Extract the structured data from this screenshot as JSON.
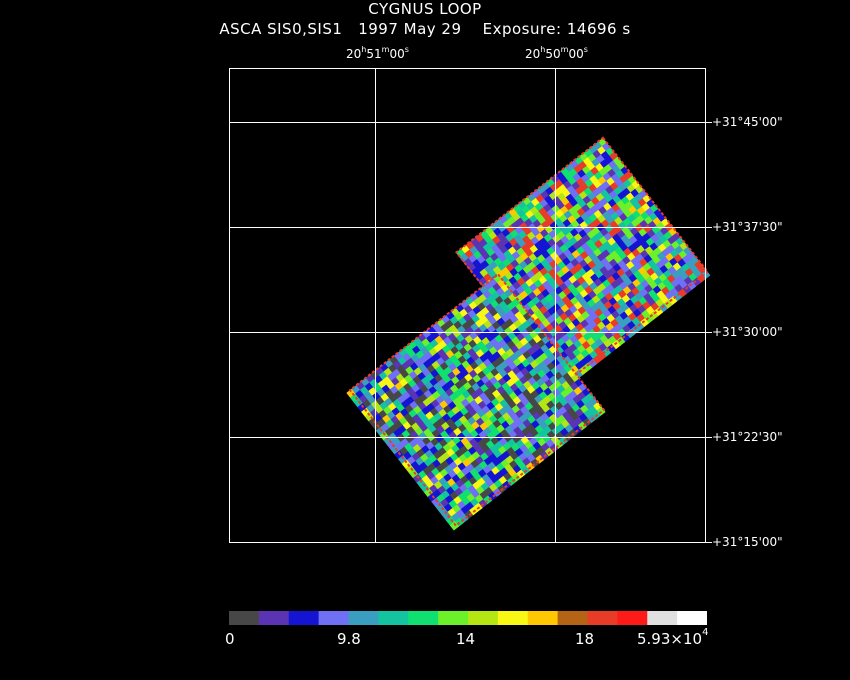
{
  "title": "CYGNUS LOOP",
  "subtitle": {
    "instrument": "ASCA SIS0,SIS1",
    "date": "1997 May 29",
    "exposure": "Exposure: 14696 s"
  },
  "ra_ticks": [
    {
      "h": "20",
      "m": "51",
      "s": "00"
    },
    {
      "h": "20",
      "m": "50",
      "s": "00"
    }
  ],
  "dec_ticks": [
    "+31°45'00\"",
    "+31°37'30\"",
    "+31°30'00\"",
    "+31°22'30\"",
    "+31°15'00\""
  ],
  "colorbar": {
    "labels": [
      "0",
      "9.8",
      "14",
      "18",
      "5.93×10"
    ],
    "exponent": "4",
    "colors": [
      "#474747",
      "#5b34b4",
      "#1414d2",
      "#7070f4",
      "#3a9ec0",
      "#14c4a0",
      "#10e070",
      "#6cf02a",
      "#b4e614",
      "#f8f814",
      "#ffc800",
      "#b46414",
      "#e83c28",
      "#ff1a1a",
      "#e0e0e0",
      "#ffffff"
    ]
  },
  "image_palette": {
    "background": "#000000",
    "levels": [
      "#474747",
      "#5b34b4",
      "#1414d2",
      "#7070f4",
      "#3a9ec0",
      "#14c4a0",
      "#10e070",
      "#6cf02a",
      "#b4e614",
      "#f8f814",
      "#ffc800",
      "#e83c28",
      "#ff1a1a"
    ]
  }
}
